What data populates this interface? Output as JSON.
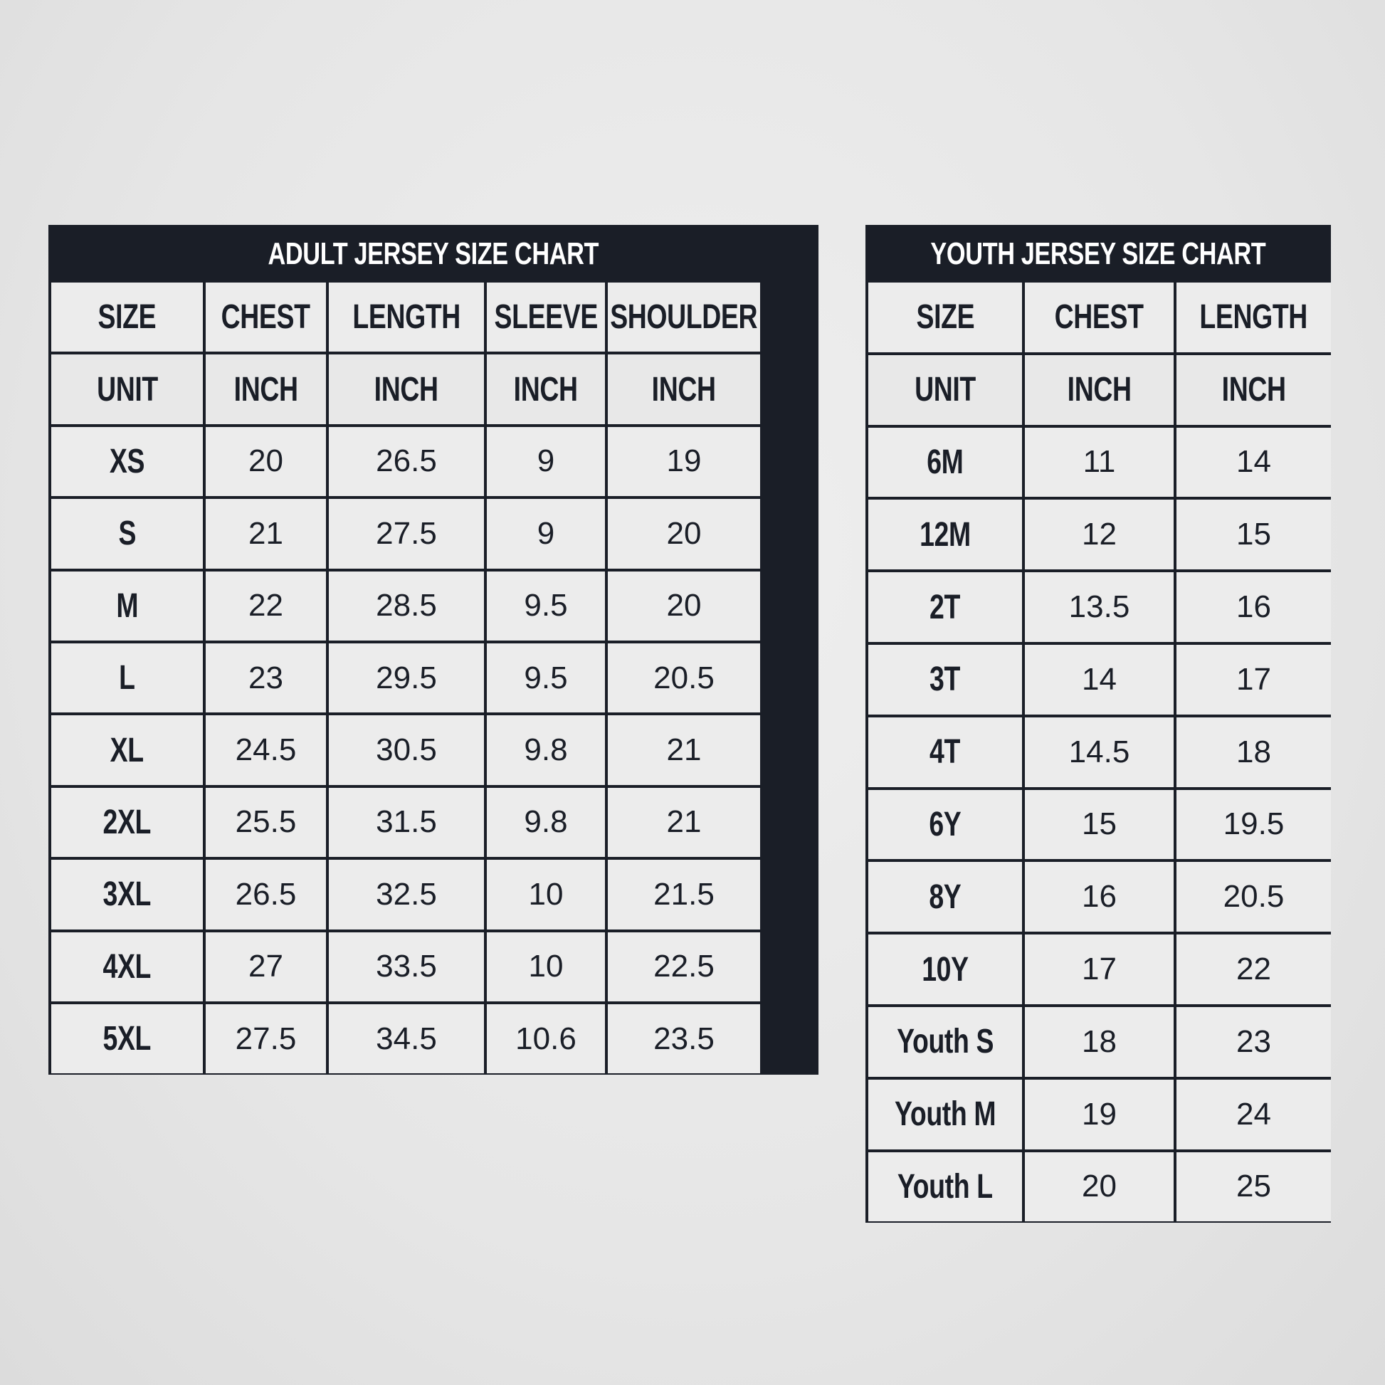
{
  "adult": {
    "title": "ADULT JERSEY SIZE CHART",
    "headers": [
      "SIZE",
      "CHEST",
      "LENGTH",
      "SLEEVE",
      "SHOULDER"
    ],
    "units": [
      "UNIT",
      "INCH",
      "INCH",
      "INCH",
      "INCH"
    ],
    "rows": [
      [
        "XS",
        "20",
        "26.5",
        "9",
        "19"
      ],
      [
        "S",
        "21",
        "27.5",
        "9",
        "20"
      ],
      [
        "M",
        "22",
        "28.5",
        "9.5",
        "20"
      ],
      [
        "L",
        "23",
        "29.5",
        "9.5",
        "20.5"
      ],
      [
        "XL",
        "24.5",
        "30.5",
        "9.8",
        "21"
      ],
      [
        "2XL",
        "25.5",
        "31.5",
        "9.8",
        "21"
      ],
      [
        "3XL",
        "26.5",
        "32.5",
        "10",
        "21.5"
      ],
      [
        "4XL",
        "27",
        "33.5",
        "10",
        "22.5"
      ],
      [
        "5XL",
        "27.5",
        "34.5",
        "10.6",
        "23.5"
      ]
    ]
  },
  "youth": {
    "title": "YOUTH JERSEY SIZE CHART",
    "headers": [
      "SIZE",
      "CHEST",
      "LENGTH"
    ],
    "units": [
      "UNIT",
      "INCH",
      "INCH"
    ],
    "rows": [
      [
        "6M",
        "11",
        "14"
      ],
      [
        "12M",
        "12",
        "15"
      ],
      [
        "2T",
        "13.5",
        "16"
      ],
      [
        "3T",
        "14",
        "17"
      ],
      [
        "4T",
        "14.5",
        "18"
      ],
      [
        "6Y",
        "15",
        "19.5"
      ],
      [
        "8Y",
        "16",
        "20.5"
      ],
      [
        "10Y",
        "17",
        "22"
      ],
      [
        "Youth S",
        "18",
        "23"
      ],
      [
        "Youth M",
        "19",
        "24"
      ],
      [
        "Youth L",
        "20",
        "25"
      ]
    ]
  },
  "colors": {
    "header_bg": "#1a1e27",
    "cell_bg": "#ececec",
    "text": "#1a1e27"
  }
}
